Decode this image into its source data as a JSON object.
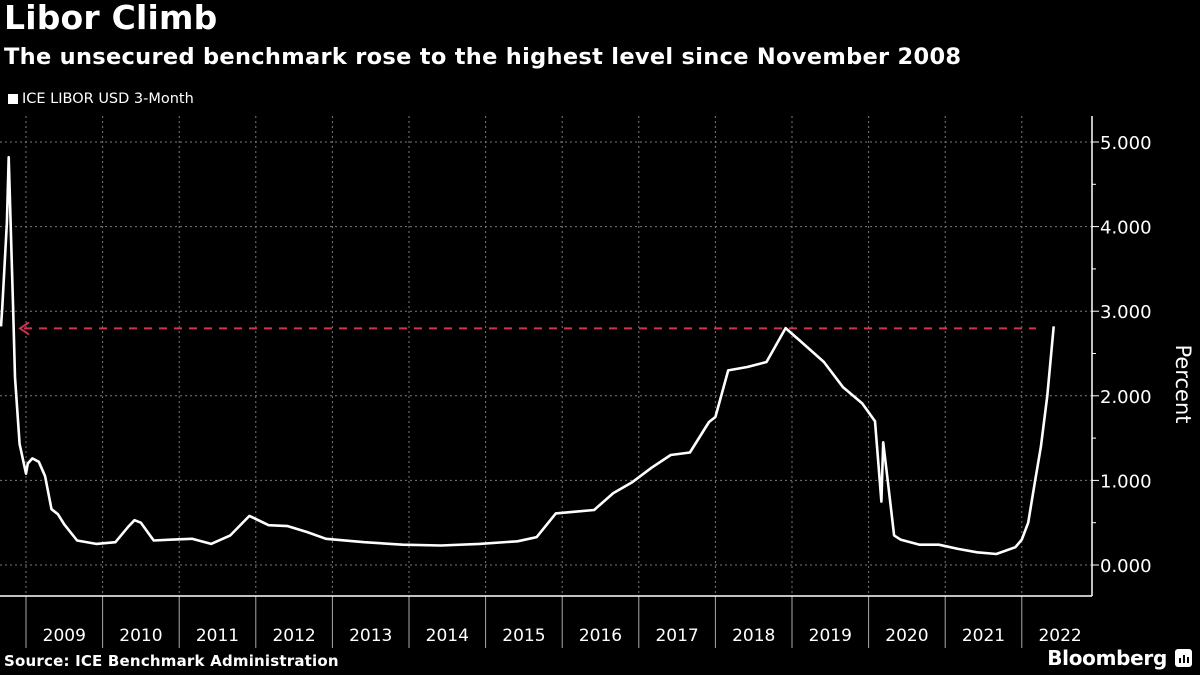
{
  "header": {
    "title": "Libor Climb",
    "subtitle": "The unsecured benchmark rose to the highest level since November 2008"
  },
  "legend": {
    "items": [
      {
        "label": "ICE LIBOR USD 3-Month",
        "color": "#ffffff"
      }
    ]
  },
  "footer": {
    "source": "Source: ICE Benchmark Administration",
    "brand": "Bloomberg"
  },
  "colors": {
    "background": "#000000",
    "line": "#ffffff",
    "reference_line": "#d3314e",
    "grid": "#7a7a7a"
  },
  "chart_data": {
    "type": "line",
    "title": "Libor Climb",
    "subtitle": "The unsecured benchmark rose to the highest level since November 2008",
    "xlabel": "",
    "ylabel": "Percent",
    "ylim": [
      -0.35,
      5.25
    ],
    "yticks": [
      "0.000",
      "1.000",
      "2.000",
      "3.000",
      "4.000",
      "5.000"
    ],
    "xticks": [
      "2009",
      "2010",
      "2011",
      "2012",
      "2013",
      "2014",
      "2015",
      "2016",
      "2017",
      "2018",
      "2019",
      "2020",
      "2021",
      "2022"
    ],
    "grid": true,
    "legend_position": "top-left",
    "annotations": [
      {
        "type": "dashed-arrow",
        "text": "",
        "level": 2.82,
        "from": "2022-03",
        "to": "2008-11",
        "color": "#d3314e"
      }
    ],
    "series": [
      {
        "name": "ICE LIBOR USD 3-Month",
        "x": [
          "2008-09",
          "2008-09",
          "2008-10",
          "2008-10",
          "2008-11",
          "2008-11",
          "2008-12",
          "2009-01",
          "2009-01",
          "2009-02",
          "2009-03",
          "2009-04",
          "2009-05",
          "2009-06",
          "2009-07",
          "2009-09",
          "2009-12",
          "2010-03",
          "2010-05",
          "2010-06",
          "2010-07",
          "2010-09",
          "2010-12",
          "2011-03",
          "2011-06",
          "2011-09",
          "2011-12",
          "2012-03",
          "2012-06",
          "2012-09",
          "2012-12",
          "2013-06",
          "2013-12",
          "2014-06",
          "2014-12",
          "2015-06",
          "2015-09",
          "2015-12",
          "2016-03",
          "2016-06",
          "2016-09",
          "2016-12",
          "2017-03",
          "2017-06",
          "2017-09",
          "2017-12",
          "2018-01",
          "2018-03",
          "2018-06",
          "2018-09",
          "2018-12",
          "2019-03",
          "2019-06",
          "2019-09",
          "2019-12",
          "2020-02",
          "2020-03",
          "2020-03",
          "2020-04",
          "2020-05",
          "2020-06",
          "2020-09",
          "2020-12",
          "2021-03",
          "2021-06",
          "2021-09",
          "2021-12",
          "2022-01",
          "2022-02",
          "2022-03",
          "2022-04",
          "2022-05",
          "2022-06"
        ],
        "values": [
          2.82,
          3.05,
          4.05,
          4.82,
          3.0,
          2.22,
          1.43,
          1.08,
          1.2,
          1.26,
          1.22,
          1.05,
          0.66,
          0.6,
          0.48,
          0.29,
          0.25,
          0.27,
          0.45,
          0.53,
          0.5,
          0.29,
          0.3,
          0.31,
          0.25,
          0.35,
          0.58,
          0.47,
          0.46,
          0.39,
          0.31,
          0.27,
          0.24,
          0.23,
          0.25,
          0.28,
          0.33,
          0.61,
          0.63,
          0.65,
          0.85,
          0.98,
          1.15,
          1.3,
          1.33,
          1.69,
          1.75,
          2.3,
          2.34,
          2.4,
          2.8,
          2.6,
          2.4,
          2.1,
          1.91,
          1.7,
          0.75,
          1.45,
          1.0,
          0.35,
          0.3,
          0.24,
          0.24,
          0.19,
          0.15,
          0.13,
          0.21,
          0.3,
          0.5,
          0.96,
          1.4,
          2.0,
          2.82
        ]
      }
    ]
  }
}
